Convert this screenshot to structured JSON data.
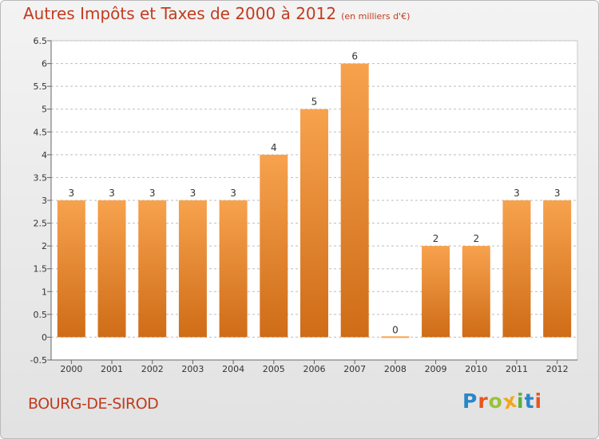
{
  "header": {
    "title": "Autres Impôts et Taxes de 2000 à 2012",
    "unit": "(en milliers d'€)"
  },
  "footer": {
    "commune": "BOURG-DE-SIROD",
    "logo_letters": [
      "P",
      "r",
      "o",
      "x",
      "i",
      "t",
      "i"
    ]
  },
  "colors": {
    "title": "#c23b1e",
    "bar_top": "#f7a24e",
    "bar_bottom": "#cf6c17",
    "grid": "#bdbdbd",
    "plot_bg": "#ffffff",
    "logo": [
      "#2b86c9",
      "#e8561e",
      "#9bc23a",
      "#f2a71b",
      "#5fae3a",
      "#2b86c9",
      "#e8561e"
    ]
  },
  "chart_data": {
    "type": "bar",
    "title": "Autres Impôts et Taxes de 2000 à 2012",
    "subtitle": "(en milliers d'€)",
    "categories": [
      "2000",
      "2001",
      "2002",
      "2003",
      "2004",
      "2005",
      "2006",
      "2007",
      "2008",
      "2009",
      "2010",
      "2011",
      "2012"
    ],
    "values": [
      3,
      3,
      3,
      3,
      3,
      4,
      5,
      6,
      0,
      2,
      2,
      3,
      3
    ],
    "data_labels": [
      "3",
      "3",
      "3",
      "3",
      "3",
      "4",
      "5",
      "6",
      "0",
      "2",
      "2",
      "3",
      "3"
    ],
    "y_ticks": [
      "-0.5",
      "0",
      "0.5",
      "1",
      "1.5",
      "2",
      "2.5",
      "3",
      "3.5",
      "4",
      "4.5",
      "5",
      "5.5",
      "6",
      "6.5"
    ],
    "ylim": [
      -0.5,
      6.5
    ],
    "grid": true,
    "legend": "none"
  }
}
